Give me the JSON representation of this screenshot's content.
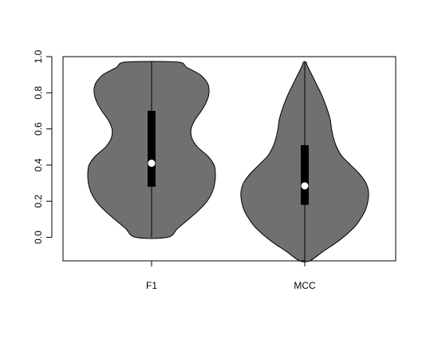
{
  "chart_data": {
    "type": "violin",
    "title": "",
    "xlabel": "",
    "ylabel": "",
    "categories": [
      "F1",
      "MCC"
    ],
    "ylim": [
      -0.13,
      1.0
    ],
    "yticks": [
      "0.0",
      "0.2",
      "0.4",
      "0.6",
      "0.8",
      "1.0"
    ],
    "grid": false,
    "colors": {
      "fill": "#707070",
      "box": "#000000",
      "median": "#ffffff",
      "outline": "#000000"
    },
    "violins": [
      {
        "name": "F1",
        "min": 0.0,
        "max": 0.97,
        "q1": 0.28,
        "median": 0.41,
        "q3": 0.7,
        "density": [
          [
            0.0,
            0.25
          ],
          [
            0.05,
            0.41
          ],
          [
            0.1,
            0.58
          ],
          [
            0.15,
            0.74
          ],
          [
            0.2,
            0.87
          ],
          [
            0.25,
            0.95
          ],
          [
            0.3,
            0.99
          ],
          [
            0.35,
            1.0
          ],
          [
            0.4,
            0.98
          ],
          [
            0.45,
            0.88
          ],
          [
            0.5,
            0.72
          ],
          [
            0.55,
            0.63
          ],
          [
            0.6,
            0.62
          ],
          [
            0.65,
            0.68
          ],
          [
            0.7,
            0.78
          ],
          [
            0.75,
            0.86
          ],
          [
            0.8,
            0.9
          ],
          [
            0.85,
            0.88
          ],
          [
            0.9,
            0.76
          ],
          [
            0.94,
            0.55
          ],
          [
            0.97,
            0.4
          ]
        ]
      },
      {
        "name": "MCC",
        "min": -0.13,
        "max": 0.97,
        "q1": 0.18,
        "median": 0.285,
        "q3": 0.51,
        "density": [
          [
            -0.13,
            0.08
          ],
          [
            -0.08,
            0.28
          ],
          [
            -0.02,
            0.53
          ],
          [
            0.05,
            0.76
          ],
          [
            0.1,
            0.87
          ],
          [
            0.15,
            0.95
          ],
          [
            0.2,
            0.99
          ],
          [
            0.25,
            1.0
          ],
          [
            0.3,
            0.96
          ],
          [
            0.35,
            0.86
          ],
          [
            0.4,
            0.72
          ],
          [
            0.45,
            0.58
          ],
          [
            0.5,
            0.5
          ],
          [
            0.55,
            0.45
          ],
          [
            0.6,
            0.42
          ],
          [
            0.65,
            0.4
          ],
          [
            0.7,
            0.36
          ],
          [
            0.75,
            0.31
          ],
          [
            0.8,
            0.25
          ],
          [
            0.85,
            0.18
          ],
          [
            0.9,
            0.11
          ],
          [
            0.95,
            0.04
          ],
          [
            0.97,
            0.02
          ]
        ]
      }
    ]
  }
}
